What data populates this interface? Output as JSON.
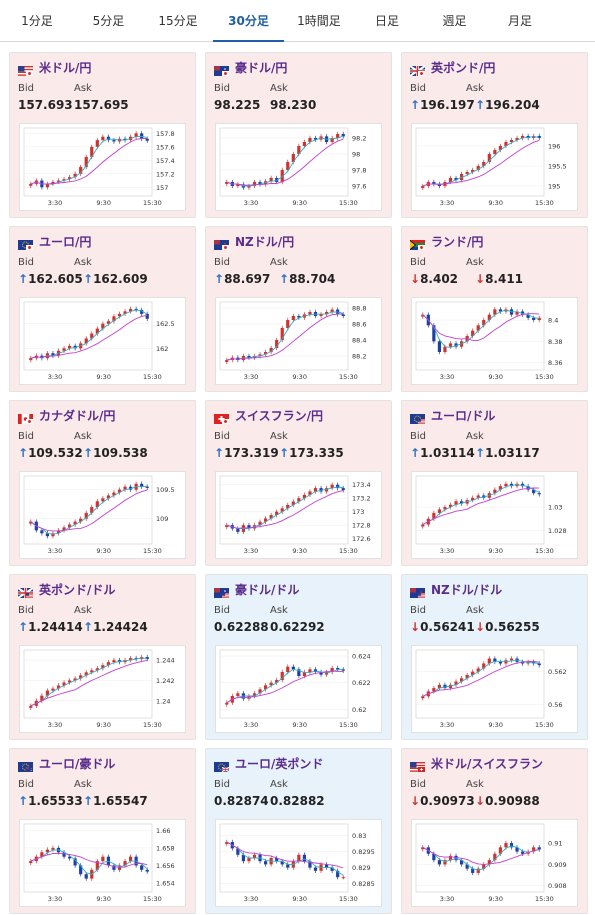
{
  "tabs": [
    {
      "label": "1分足",
      "active": false
    },
    {
      "label": "5分足",
      "active": false
    },
    {
      "label": "15分足",
      "active": false
    },
    {
      "label": "30分足",
      "active": true
    },
    {
      "label": "1時間足",
      "active": false
    },
    {
      "label": "日足",
      "active": false
    },
    {
      "label": "週足",
      "active": false
    },
    {
      "label": "月足",
      "active": false
    }
  ],
  "labels": {
    "bid": "Bid",
    "ask": "Ask"
  },
  "colors": {
    "up": "#d2322d",
    "down": "#1f3fa8",
    "ma1": "#2ab1c9",
    "ma2": "#c43fd1",
    "tab_active": "#1f5fa8",
    "title": "#5a2d8c",
    "pink_bg": "#fbeaea",
    "blue_bg": "#e8f2fb"
  },
  "x_ticks": [
    "3:30",
    "9:30",
    "15:30"
  ],
  "pairs": [
    {
      "name": "米ドル/円",
      "flag": "us-jp-flag-icon",
      "theme": "pink",
      "bid": "157.693",
      "ask": "157.695",
      "dir": "none",
      "chart_data": {
        "type": "candlestick",
        "y_ticks": [
          "157.8",
          "157.6",
          "157.4",
          "157.2",
          "157"
        ],
        "ylim": [
          156.9,
          157.85
        ],
        "close": [
          157.05,
          157.1,
          157.0,
          157.05,
          157.08,
          157.1,
          157.12,
          157.15,
          157.2,
          157.3,
          157.45,
          157.6,
          157.7,
          157.75,
          157.7,
          157.68,
          157.72,
          157.7,
          157.75,
          157.8,
          157.72,
          157.69
        ]
      }
    },
    {
      "name": "豪ドル/円",
      "flag": "au-jp-flag-icon",
      "theme": "pink",
      "bid": "98.225",
      "ask": "98.230",
      "dir": "none",
      "chart_data": {
        "type": "candlestick",
        "y_ticks": [
          "98.2",
          "98",
          "97.8",
          "97.6"
        ],
        "ylim": [
          97.5,
          98.3
        ],
        "close": [
          97.65,
          97.6,
          97.62,
          97.58,
          97.6,
          97.65,
          97.62,
          97.66,
          97.7,
          97.65,
          97.8,
          97.9,
          98.0,
          98.1,
          98.15,
          98.2,
          98.18,
          98.22,
          98.15,
          98.2,
          98.25,
          98.22
        ]
      }
    },
    {
      "name": "英ポンド/円",
      "flag": "gb-jp-flag-icon",
      "theme": "pink",
      "bid": "196.197",
      "ask": "196.204",
      "dir": "up",
      "chart_data": {
        "type": "candlestick",
        "y_ticks": [
          "196",
          "195.5",
          "195"
        ],
        "ylim": [
          194.8,
          196.4
        ],
        "close": [
          195.0,
          195.1,
          195.05,
          195.0,
          195.1,
          195.2,
          195.15,
          195.3,
          195.35,
          195.4,
          195.5,
          195.6,
          195.8,
          195.9,
          196.0,
          196.1,
          196.15,
          196.2,
          196.25,
          196.2,
          196.25,
          196.2
        ]
      }
    },
    {
      "name": "ユーロ/円",
      "flag": "eu-jp-flag-icon",
      "theme": "pink",
      "bid": "162.605",
      "ask": "162.609",
      "dir": "up",
      "chart_data": {
        "type": "candlestick",
        "y_ticks": [
          "162.5",
          "162"
        ],
        "ylim": [
          161.6,
          162.9
        ],
        "close": [
          161.8,
          161.85,
          161.8,
          161.9,
          161.85,
          161.95,
          162.0,
          162.05,
          162.0,
          162.1,
          162.2,
          162.3,
          162.4,
          162.5,
          162.55,
          162.65,
          162.7,
          162.75,
          162.8,
          162.78,
          162.7,
          162.6
        ]
      }
    },
    {
      "name": "NZドル/円",
      "flag": "nz-jp-flag-icon",
      "theme": "pink",
      "bid": "88.697",
      "ask": "88.704",
      "dir": "up",
      "chart_data": {
        "type": "candlestick",
        "y_ticks": [
          "88.8",
          "88.6",
          "88.4",
          "88.2"
        ],
        "ylim": [
          88.05,
          88.85
        ],
        "close": [
          88.15,
          88.18,
          88.15,
          88.2,
          88.18,
          88.2,
          88.22,
          88.25,
          88.3,
          88.4,
          88.55,
          88.65,
          88.7,
          88.68,
          88.72,
          88.75,
          88.7,
          88.72,
          88.75,
          88.78,
          88.72,
          88.7
        ]
      }
    },
    {
      "name": "ランド/円",
      "flag": "za-jp-flag-icon",
      "theme": "pink",
      "bid": "8.402",
      "ask": "8.411",
      "dir": "down",
      "chart_data": {
        "type": "candlestick",
        "y_ticks": [
          "8.4",
          "8.38",
          "8.36"
        ],
        "ylim": [
          8.355,
          8.415
        ],
        "close": [
          8.405,
          8.395,
          8.38,
          8.37,
          8.375,
          8.378,
          8.375,
          8.38,
          8.385,
          8.39,
          8.395,
          8.4,
          8.405,
          8.41,
          8.408,
          8.41,
          8.405,
          8.408,
          8.405,
          8.402,
          8.4,
          8.402
        ]
      }
    },
    {
      "name": "カナダドル/円",
      "flag": "ca-jp-flag-icon",
      "theme": "pink",
      "bid": "109.532",
      "ask": "109.538",
      "dir": "up",
      "chart_data": {
        "type": "candlestick",
        "y_ticks": [
          "109.5",
          "109"
        ],
        "ylim": [
          108.6,
          109.7
        ],
        "close": [
          108.95,
          108.8,
          108.75,
          108.7,
          108.75,
          108.8,
          108.85,
          108.9,
          108.95,
          109.0,
          109.1,
          109.2,
          109.3,
          109.35,
          109.4,
          109.45,
          109.5,
          109.55,
          109.5,
          109.6,
          109.55,
          109.53
        ]
      }
    },
    {
      "name": "スイスフラン/円",
      "flag": "ch-jp-flag-icon",
      "theme": "pink",
      "bid": "173.319",
      "ask": "173.335",
      "dir": "up",
      "chart_data": {
        "type": "candlestick",
        "y_ticks": [
          "173.4",
          "173.2",
          "173",
          "172.8",
          "172.6"
        ],
        "ylim": [
          172.55,
          173.5
        ],
        "close": [
          172.8,
          172.75,
          172.7,
          172.8,
          172.75,
          172.8,
          172.85,
          172.9,
          172.95,
          173.0,
          173.05,
          173.1,
          173.15,
          173.2,
          173.25,
          173.3,
          173.35,
          173.3,
          173.35,
          173.4,
          173.35,
          173.32
        ]
      }
    },
    {
      "name": "ユーロ/ドル",
      "flag": "eu-us-flag-icon",
      "theme": "pink",
      "bid": "1.03114",
      "ask": "1.03117",
      "dir": "up",
      "chart_data": {
        "type": "candlestick",
        "y_ticks": [
          "1.03",
          "1.028"
        ],
        "ylim": [
          1.027,
          1.0325
        ],
        "close": [
          1.0285,
          1.029,
          1.0295,
          1.0298,
          1.03,
          1.0302,
          1.0305,
          1.0303,
          1.0306,
          1.0308,
          1.031,
          1.0308,
          1.0312,
          1.0315,
          1.0318,
          1.032,
          1.0318,
          1.032,
          1.0318,
          1.0315,
          1.0312,
          1.0311
        ]
      }
    },
    {
      "name": "英ポンド/ドル",
      "flag": "gb-us-flag-icon",
      "theme": "pink",
      "bid": "1.24414",
      "ask": "1.24424",
      "dir": "up",
      "chart_data": {
        "type": "candlestick",
        "y_ticks": [
          "1.244",
          "1.242",
          "1.24"
        ],
        "ylim": [
          1.2385,
          1.2448
        ],
        "close": [
          1.2395,
          1.24,
          1.2405,
          1.241,
          1.2412,
          1.2415,
          1.2418,
          1.242,
          1.2422,
          1.2425,
          1.2428,
          1.243,
          1.2432,
          1.2435,
          1.2438,
          1.244,
          1.2438,
          1.244,
          1.2442,
          1.2441,
          1.2443,
          1.2441
        ]
      }
    },
    {
      "name": "豪ドル/ドル",
      "flag": "au-us-flag-icon",
      "theme": "blue",
      "bid": "0.62288",
      "ask": "0.62292",
      "dir": "none",
      "chart_data": {
        "type": "candlestick",
        "y_ticks": [
          "0.624",
          "0.622",
          "0.62"
        ],
        "ylim": [
          0.6195,
          0.6243
        ],
        "close": [
          0.6205,
          0.621,
          0.6212,
          0.6208,
          0.621,
          0.6212,
          0.6215,
          0.6218,
          0.622,
          0.6222,
          0.6228,
          0.6232,
          0.623,
          0.6225,
          0.6228,
          0.623,
          0.6228,
          0.6226,
          0.6228,
          0.6231,
          0.623,
          0.6229
        ]
      }
    },
    {
      "name": "NZドル/ドル",
      "flag": "nz-us-flag-icon",
      "theme": "blue",
      "bid": "0.56241",
      "ask": "0.56255",
      "dir": "down",
      "chart_data": {
        "type": "candlestick",
        "y_ticks": [
          "0.562",
          "0.56"
        ],
        "ylim": [
          0.5593,
          0.5632
        ],
        "close": [
          0.5605,
          0.5608,
          0.561,
          0.5612,
          0.561,
          0.5612,
          0.5614,
          0.5616,
          0.5618,
          0.562,
          0.5622,
          0.5625,
          0.5628,
          0.5626,
          0.5625,
          0.5627,
          0.5628,
          0.5626,
          0.5625,
          0.5626,
          0.5625,
          0.5624
        ]
      }
    },
    {
      "name": "ユーロ/豪ドル",
      "flag": "eu-au-flag-icon",
      "theme": "pink",
      "bid": "1.65533",
      "ask": "1.65547",
      "dir": "up",
      "chart_data": {
        "type": "candlestick",
        "y_ticks": [
          "1.66",
          "1.658",
          "1.656",
          "1.654"
        ],
        "ylim": [
          1.6532,
          1.6605
        ],
        "close": [
          1.6565,
          1.657,
          1.6575,
          1.6578,
          1.658,
          1.6575,
          1.657,
          1.6568,
          1.656,
          1.655,
          1.6545,
          1.6555,
          1.6565,
          1.657,
          1.656,
          1.6555,
          1.656,
          1.6565,
          1.657,
          1.656,
          1.6555,
          1.6553
        ]
      }
    },
    {
      "name": "ユーロ/英ポンド",
      "flag": "eu-gb-flag-icon",
      "theme": "blue",
      "bid": "0.82874",
      "ask": "0.82882",
      "dir": "none",
      "chart_data": {
        "type": "candlestick",
        "y_ticks": [
          "0.83",
          "0.8295",
          "0.829",
          "0.8285"
        ],
        "ylim": [
          0.8283,
          0.8303
        ],
        "close": [
          0.8298,
          0.8296,
          0.8294,
          0.8292,
          0.8293,
          0.8294,
          0.8292,
          0.8291,
          0.8293,
          0.8292,
          0.8291,
          0.829,
          0.8292,
          0.8294,
          0.8292,
          0.829,
          0.8289,
          0.8291,
          0.829,
          0.8289,
          0.8287,
          0.8287
        ]
      }
    },
    {
      "name": "米ドル/スイスフラン",
      "flag": "us-ch-flag-icon",
      "theme": "pink",
      "bid": "0.90973",
      "ask": "0.90988",
      "dir": "down",
      "chart_data": {
        "type": "candlestick",
        "y_ticks": [
          "0.91",
          "0.909",
          "0.908"
        ],
        "ylim": [
          0.9078,
          0.9108
        ],
        "close": [
          0.9098,
          0.9095,
          0.9092,
          0.909,
          0.9092,
          0.9094,
          0.9092,
          0.909,
          0.9088,
          0.9086,
          0.9088,
          0.909,
          0.9092,
          0.9095,
          0.9098,
          0.91,
          0.9098,
          0.9096,
          0.9095,
          0.9096,
          0.9098,
          0.9097
        ]
      }
    }
  ]
}
